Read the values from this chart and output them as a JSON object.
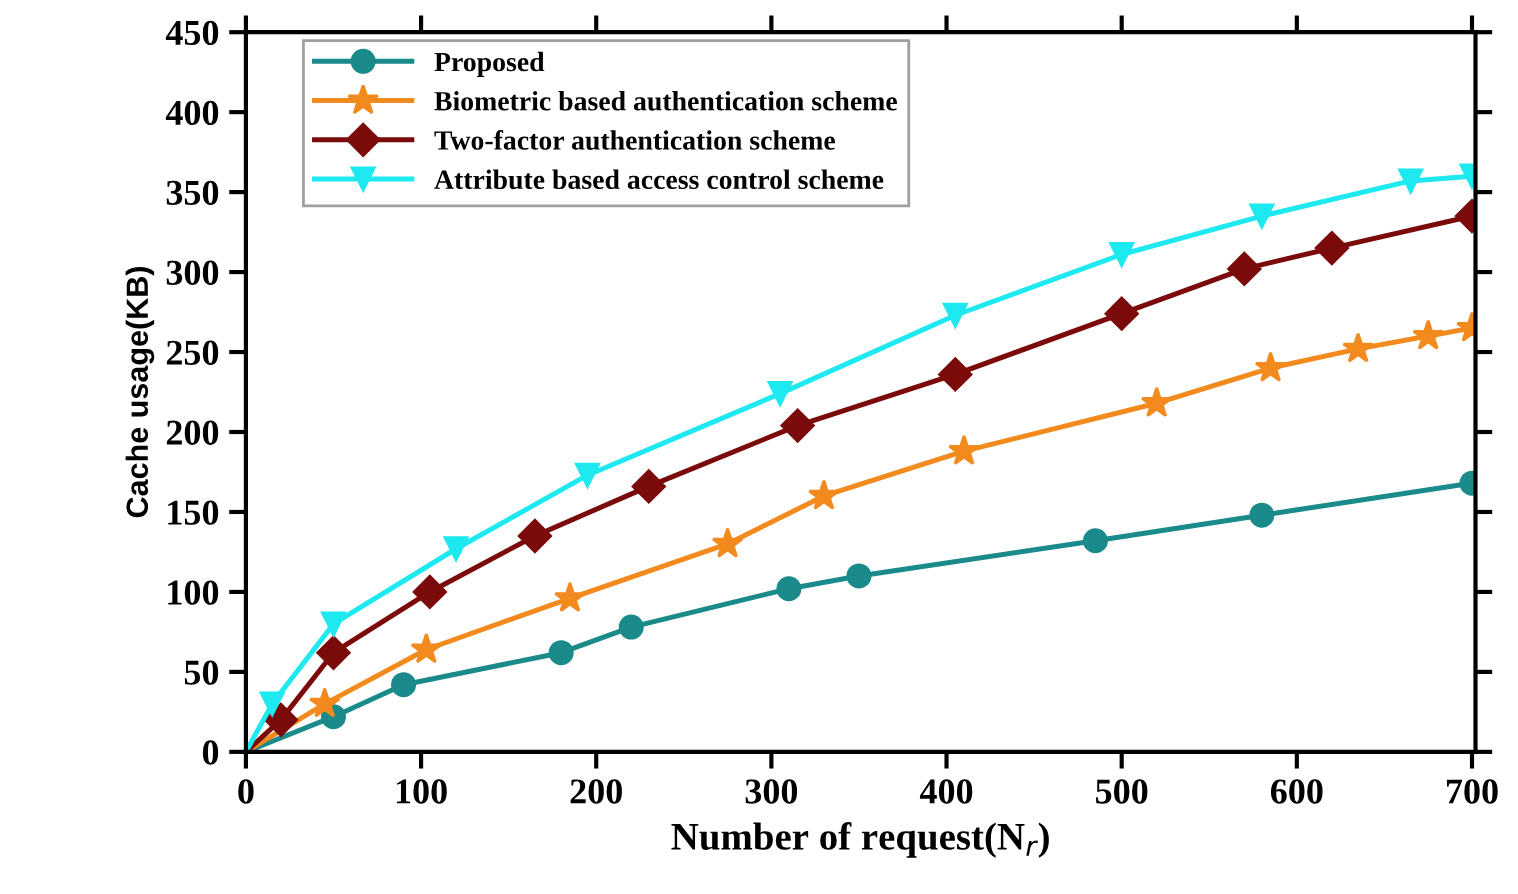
{
  "chart_data": {
    "type": "line",
    "xlabel": "Number of request(N$_{r}$)",
    "ylabel": "Cache usage(KB)",
    "xlim": [
      0,
      702
    ],
    "ylim": [
      0,
      450
    ],
    "xticks": [
      0,
      100,
      200,
      300,
      400,
      500,
      600,
      700
    ],
    "yticks": [
      0,
      50,
      100,
      150,
      200,
      250,
      300,
      350,
      400,
      450
    ],
    "grid": false,
    "legend": "top left",
    "line_style": "solid",
    "series": [
      {
        "name": "Proposed",
        "color": "#1a8a8a",
        "marker": "circle",
        "x": [
          0,
          50,
          90,
          180,
          220,
          310,
          350,
          485,
          580,
          700
        ],
        "values": [
          0,
          22,
          42,
          62,
          78,
          102,
          110,
          132,
          148,
          168
        ]
      },
      {
        "name": "Biometric based authentication scheme",
        "color": "#f28a1e",
        "marker": "star",
        "x": [
          0,
          45,
          103,
          185,
          275,
          330,
          410,
          520,
          585,
          635,
          675,
          700
        ],
        "values": [
          0,
          30,
          64,
          96,
          130,
          160,
          188,
          218,
          240,
          252,
          260,
          265
        ]
      },
      {
        "name": "Two-factor authentication scheme",
        "color": "#7b0a0a",
        "marker": "diamond",
        "x": [
          0,
          20,
          50,
          105,
          165,
          230,
          315,
          405,
          500,
          570,
          620,
          700
        ],
        "values": [
          0,
          20,
          62,
          100,
          135,
          166,
          204,
          236,
          274,
          302,
          315,
          335
        ]
      },
      {
        "name": "Attribute based access control scheme",
        "color": "#1ee8f0",
        "marker": "triangle",
        "x": [
          0,
          15,
          50,
          120,
          195,
          305,
          405,
          500,
          580,
          665,
          700
        ],
        "values": [
          0,
          30,
          80,
          127,
          173,
          224,
          273,
          311,
          335,
          357,
          360
        ]
      }
    ]
  }
}
